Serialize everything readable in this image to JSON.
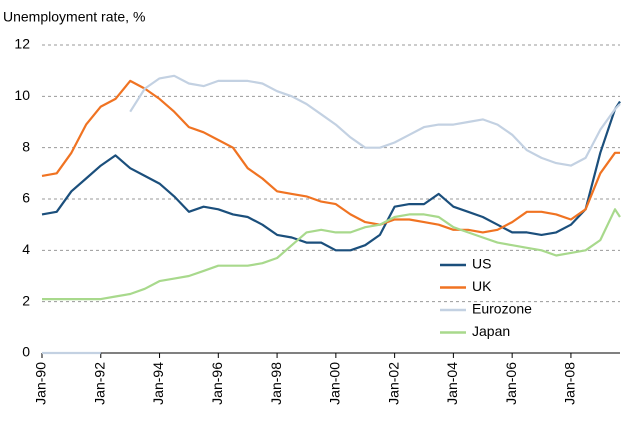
{
  "chart_data": {
    "type": "line",
    "title": "Unemployment rate, %",
    "x": [
      1990,
      1990.5,
      1991,
      1991.5,
      1992,
      1992.5,
      1993,
      1993.5,
      1994,
      1994.5,
      1995,
      1995.5,
      1996,
      1996.5,
      1997,
      1997.5,
      1998,
      1998.5,
      1999,
      1999.5,
      2000,
      2000.5,
      2001,
      2001.5,
      2002,
      2002.5,
      2003,
      2003.5,
      2004,
      2004.5,
      2005,
      2005.5,
      2006,
      2006.5,
      2007,
      2007.5,
      2008,
      2008.5,
      2009,
      2009.5,
      2009.67
    ],
    "series": [
      {
        "name": "US",
        "color": "#1b4f7c",
        "values": [
          5.4,
          5.5,
          6.3,
          6.8,
          7.3,
          7.7,
          7.2,
          6.9,
          6.6,
          6.1,
          5.5,
          5.7,
          5.6,
          5.4,
          5.3,
          5.0,
          4.6,
          4.5,
          4.3,
          4.3,
          4.0,
          4.0,
          4.2,
          4.6,
          5.7,
          5.8,
          5.8,
          6.2,
          5.7,
          5.5,
          5.3,
          5.0,
          4.7,
          4.7,
          4.6,
          4.7,
          5.0,
          5.6,
          7.8,
          9.5,
          9.8
        ]
      },
      {
        "name": "UK",
        "color": "#f07322",
        "values": [
          6.9,
          7.0,
          7.8,
          8.9,
          9.6,
          9.9,
          10.6,
          10.3,
          9.9,
          9.4,
          8.8,
          8.6,
          8.3,
          8.0,
          7.2,
          6.8,
          6.3,
          6.2,
          6.1,
          5.9,
          5.8,
          5.4,
          5.1,
          5.0,
          5.2,
          5.2,
          5.1,
          5.0,
          4.8,
          4.8,
          4.7,
          4.8,
          5.1,
          5.5,
          5.5,
          5.4,
          5.2,
          5.6,
          7.0,
          7.8,
          7.8
        ]
      },
      {
        "name": "Eurozone",
        "color": "#c3d1e2",
        "values": [
          0,
          0,
          0,
          0,
          0,
          null,
          9.4,
          10.3,
          10.7,
          10.8,
          10.5,
          10.4,
          10.6,
          10.6,
          10.6,
          10.5,
          10.2,
          10.0,
          9.7,
          9.3,
          8.9,
          8.4,
          8.0,
          8.0,
          8.2,
          8.5,
          8.8,
          8.9,
          8.9,
          9.0,
          9.1,
          8.9,
          8.5,
          7.9,
          7.6,
          7.4,
          7.3,
          7.6,
          8.7,
          9.5,
          9.7
        ]
      },
      {
        "name": "Japan",
        "color": "#a8d98c",
        "values": [
          2.1,
          2.1,
          2.1,
          2.1,
          2.1,
          2.2,
          2.3,
          2.5,
          2.8,
          2.9,
          3.0,
          3.2,
          3.4,
          3.4,
          3.4,
          3.5,
          3.7,
          4.2,
          4.7,
          4.8,
          4.7,
          4.7,
          4.9,
          5.0,
          5.3,
          5.4,
          5.4,
          5.3,
          4.9,
          4.7,
          4.5,
          4.3,
          4.2,
          4.1,
          4.0,
          3.8,
          3.9,
          4.0,
          4.4,
          5.6,
          5.3
        ]
      }
    ],
    "xlim": [
      1990,
      2009.67
    ],
    "xticks": [
      {
        "value": 1990,
        "label": "Jan-90"
      },
      {
        "value": 1992,
        "label": "Jan-92"
      },
      {
        "value": 1994,
        "label": "Jan-94"
      },
      {
        "value": 1996,
        "label": "Jan-96"
      },
      {
        "value": 1998,
        "label": "Jan-98"
      },
      {
        "value": 2000,
        "label": "Jan-00"
      },
      {
        "value": 2002,
        "label": "Jan-02"
      },
      {
        "value": 2004,
        "label": "Jan-04"
      },
      {
        "value": 2006,
        "label": "Jan-06"
      },
      {
        "value": 2008,
        "label": "Jan-08"
      }
    ],
    "ylim": [
      0,
      12
    ],
    "yticks": [
      0,
      2,
      4,
      6,
      8,
      10,
      12
    ],
    "grid": true
  }
}
